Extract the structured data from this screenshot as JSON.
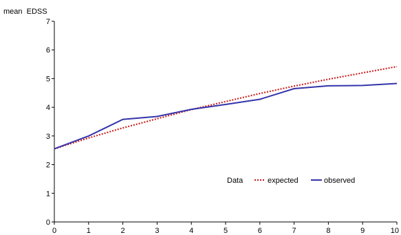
{
  "chart_data": {
    "type": "line",
    "ylabel": "mean  EDSS",
    "xlabel": "",
    "xlim": [
      0,
      10
    ],
    "ylim": [
      0,
      7
    ],
    "x_ticks": [
      0,
      1,
      2,
      3,
      4,
      5,
      6,
      7,
      8,
      9,
      10
    ],
    "y_ticks": [
      0,
      1,
      2,
      3,
      4,
      5,
      6,
      7
    ],
    "grid": false,
    "legend": {
      "title": "Data",
      "placement": "inside-bottom-right"
    },
    "series": [
      {
        "name": "expected",
        "style": "dotted",
        "color": "#cc2222",
        "x": [
          0,
          1,
          2,
          3,
          4,
          5,
          6,
          7,
          8,
          9,
          10
        ],
        "y": [
          2.55,
          2.93,
          3.28,
          3.6,
          3.92,
          4.2,
          4.48,
          4.74,
          4.98,
          5.2,
          5.42
        ]
      },
      {
        "name": "observed",
        "style": "solid",
        "color": "#3333aa",
        "x": [
          0,
          1,
          2,
          3,
          4,
          5,
          6,
          7,
          8,
          9,
          10
        ],
        "y": [
          2.55,
          3.0,
          3.58,
          3.68,
          3.93,
          4.1,
          4.28,
          4.65,
          4.75,
          4.76,
          4.83
        ]
      }
    ]
  }
}
